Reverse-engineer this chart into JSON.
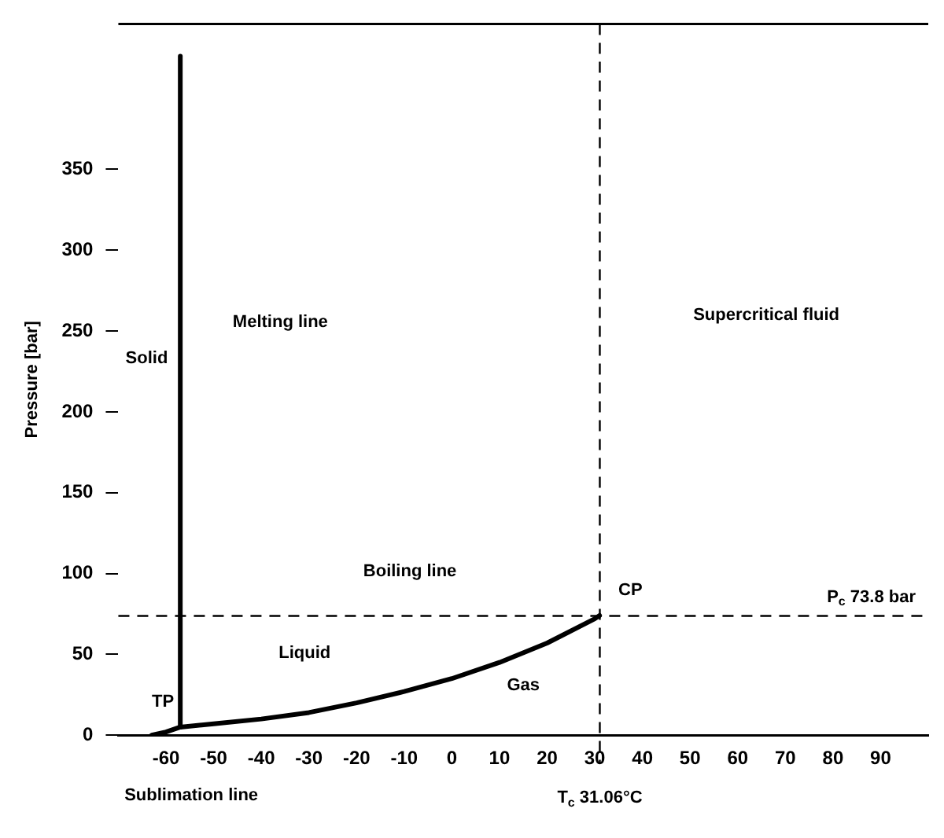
{
  "chart_data": {
    "type": "line",
    "ylabel": "Pressure [bar]",
    "xlim": [
      -70,
      100
    ],
    "ylim": [
      0,
      440
    ],
    "xticks": [
      -60,
      -50,
      -40,
      -30,
      -20,
      -10,
      0,
      10,
      20,
      30,
      40,
      50,
      60,
      70,
      80,
      90
    ],
    "yticks": [
      0,
      50,
      100,
      150,
      200,
      250,
      300,
      350
    ],
    "grid": false,
    "legend": false,
    "marker": "none",
    "line_style": "solid",
    "series": [
      {
        "color": "#000000",
        "x": [
          -57,
          -57
        ],
        "values": [
          5,
          420
        ]
      },
      {
        "color": "#000000",
        "x": [
          -63,
          -60,
          -57,
          -50,
          -40,
          -30,
          -20,
          -10,
          0,
          10,
          20,
          30,
          31
        ],
        "values": [
          0,
          2,
          5,
          7,
          10,
          14,
          20,
          27,
          35,
          45,
          57,
          72,
          74
        ]
      }
    ],
    "ref_lines": [
      {
        "axis": "y",
        "value": 73.8,
        "label": "P$_{c}$ 73.8 bar",
        "color": "#000000",
        "line_style": "dashed"
      },
      {
        "axis": "x",
        "value": 31.06,
        "label": "T$_{c}$ 31.06°C",
        "color": "#000000",
        "line_style": "dashed"
      }
    ],
    "annotations": [
      "Solid",
      "Melting line",
      "Supercritical fluid",
      "Boiling line",
      "Liquid",
      "Gas",
      "Sublimation line",
      {
        "text": "TP",
        "x": -57,
        "y": 5
      },
      {
        "text": "CP",
        "x": 31,
        "y": 74
      }
    ]
  }
}
